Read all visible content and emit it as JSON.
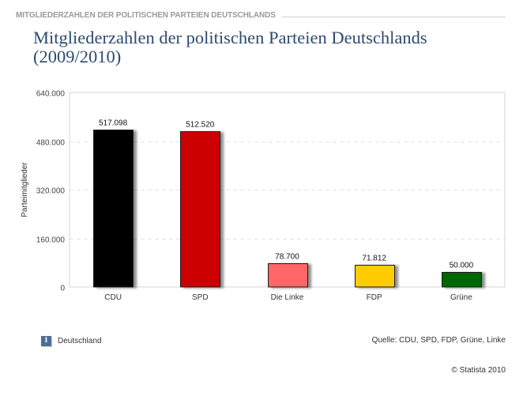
{
  "header": {
    "section_label": "MITGLIEDERZAHLEN DER POLITISCHEN PARTEIEN DEUTSCHLANDS",
    "title_line1": "Mitgliederzahlen der politischen Parteien Deutschlands",
    "title_line2": "(2009/2010)"
  },
  "chart_data": {
    "type": "bar",
    "title": "Mitgliederzahlen der politischen Parteien Deutschlands (2009/2010)",
    "xlabel": "",
    "ylabel": "Parteimitglieder",
    "categories": [
      "CDU",
      "SPD",
      "Die Linke",
      "FDP",
      "Grüne"
    ],
    "values": [
      517098,
      512520,
      78700,
      71812,
      50000
    ],
    "value_labels": [
      "517.098",
      "512.520",
      "78.700",
      "71.812",
      "50.000"
    ],
    "bar_colors": [
      "#000000",
      "#cc0000",
      "#ff6666",
      "#ffcc00",
      "#006600"
    ],
    "ylim": [
      0,
      640000
    ],
    "yticks": [
      0,
      160000,
      320000,
      480000,
      640000
    ],
    "ytick_labels": [
      "0",
      "160.000",
      "320.000",
      "480.000",
      "640.000"
    ],
    "grid": true,
    "legend": "none"
  },
  "footer": {
    "region_label": "Deutschland",
    "info_icon_glyph": "i",
    "source": "Quelle: CDU, SPD, FDP, Grüne, Linke",
    "copyright": "© Statista 2010"
  }
}
